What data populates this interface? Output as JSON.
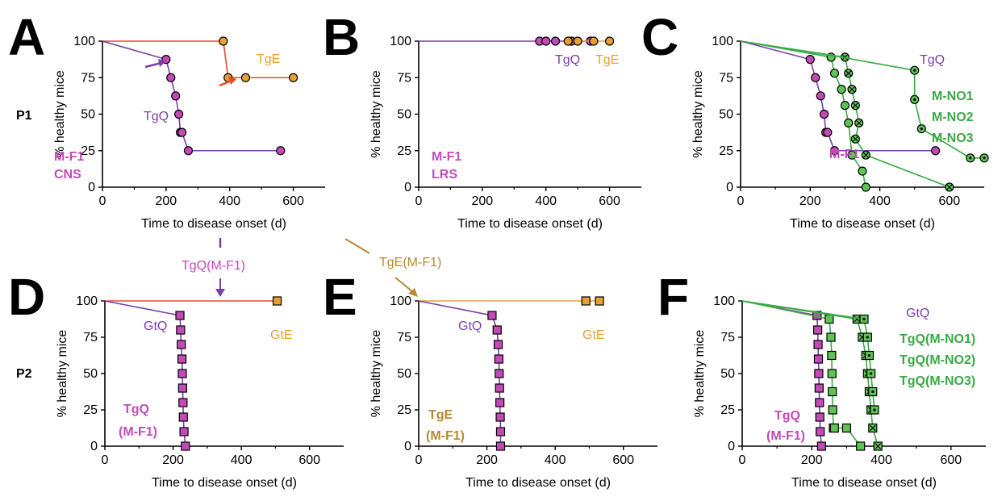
{
  "colors": {
    "purple": "#7a3fa8",
    "magenta": "#c24bb8",
    "orange": "#e8a030",
    "orange_line": "#e8731a",
    "red_line": "#e84a2a",
    "green": "#3aaa45",
    "green_fill": "#5ec454",
    "gold": "#b58a30",
    "black": "#000000"
  },
  "row_labels": [
    "P1",
    "P2"
  ],
  "between_labels": {
    "left": "TgQ(M-F1)",
    "right": "TgE(M-F1)"
  },
  "chart_data": [
    {
      "panel": "A",
      "type": "line",
      "xlabel": "Time to disease onset (d)",
      "ylabel": "% healthy mice",
      "xlim": [
        0,
        700
      ],
      "ylim": [
        0,
        100
      ],
      "xticks": [
        "0",
        "200",
        "400",
        "600"
      ],
      "yticks": [
        "0",
        "25",
        "50",
        "75",
        "100"
      ],
      "labels": [
        {
          "text": "TgE",
          "color": "#e8a030",
          "bold": false
        },
        {
          "text": "TgQ",
          "color": "#7a3fa8",
          "bold": false
        },
        {
          "text": "M-F1",
          "color": "#c24bb8",
          "bold": true
        },
        {
          "text": "CNS",
          "color": "#c24bb8",
          "bold": true
        }
      ],
      "series": [
        {
          "name": "TgE",
          "color": "#e8a030",
          "line_color": "#e84a2a",
          "marker": "circle",
          "x": [
            0,
            380,
            395,
            450,
            600
          ],
          "y": [
            100,
            100,
            75,
            75,
            75
          ],
          "marker_from": 1
        },
        {
          "name": "TgQ",
          "color": "#c24bb8",
          "line_color": "#7a3fa8",
          "marker": "circle",
          "x": [
            0,
            200,
            215,
            230,
            240,
            245,
            250,
            270,
            560
          ],
          "y": [
            100,
            87.5,
            75,
            62.5,
            50,
            37.5,
            37.5,
            25,
            25
          ],
          "marker_from": 1
        }
      ]
    },
    {
      "panel": "B",
      "type": "line",
      "xlabel": "Time to disease onset (d)",
      "ylabel": "% healthy mice",
      "xlim": [
        0,
        700
      ],
      "ylim": [
        0,
        100
      ],
      "xticks": [
        "0",
        "200",
        "400",
        "600"
      ],
      "yticks": [
        "0",
        "25",
        "50",
        "75",
        "100"
      ],
      "labels": [
        {
          "text": "TgQ",
          "color": "#7a3fa8",
          "bold": false
        },
        {
          "text": "TgE",
          "color": "#e8a030",
          "bold": false
        },
        {
          "text": "M-F1",
          "color": "#c24bb8",
          "bold": true
        },
        {
          "text": "LRS",
          "color": "#c24bb8",
          "bold": true
        }
      ],
      "series": [
        {
          "name": "TgQ",
          "color": "#c24bb8",
          "line_color": "#7a3fa8",
          "marker": "circle",
          "x": [
            0,
            380,
            400,
            430,
            480,
            540
          ],
          "y": [
            100,
            100,
            100,
            100,
            100,
            100
          ],
          "marker_from": 1
        },
        {
          "name": "TgE",
          "color": "#e8a030",
          "line_color": "#e8a030",
          "marker": "circle",
          "x": [
            470,
            500,
            550,
            600
          ],
          "y": [
            100,
            100,
            100,
            100
          ],
          "marker_from": 0
        }
      ]
    },
    {
      "panel": "C",
      "type": "line",
      "xlabel": "Time to disease onset (d)",
      "ylabel": "% healthy mice",
      "xlim": [
        0,
        700
      ],
      "ylim": [
        0,
        100
      ],
      "xticks": [
        "0",
        "200",
        "400",
        "600"
      ],
      "yticks": [
        "0",
        "25",
        "50",
        "75",
        "100"
      ],
      "labels": [
        {
          "text": "TgQ",
          "color": "#7a3fa8",
          "bold": false
        },
        {
          "text": "M-NO1",
          "color": "#3aaa45",
          "bold": true
        },
        {
          "text": "M-NO2",
          "color": "#3aaa45",
          "bold": true
        },
        {
          "text": "M-NO3",
          "color": "#3aaa45",
          "bold": true
        },
        {
          "text": "M-F1",
          "color": "#c24bb8",
          "bold": true
        }
      ],
      "series": [
        {
          "name": "M-F1",
          "color": "#c24bb8",
          "line_color": "#7a3fa8",
          "marker": "circle",
          "x": [
            0,
            200,
            215,
            230,
            240,
            245,
            250,
            270,
            560
          ],
          "y": [
            100,
            87.5,
            75,
            62.5,
            50,
            37.5,
            37.5,
            25,
            25
          ],
          "marker_from": 1
        },
        {
          "name": "M-NO1",
          "color": "#5ec454",
          "line_color": "#3aaa45",
          "marker": "circle",
          "x": [
            0,
            260,
            270,
            290,
            300,
            310,
            320,
            350,
            360
          ],
          "y": [
            100,
            89,
            78,
            67,
            56,
            44,
            22,
            11,
            0
          ],
          "marker_from": 1
        },
        {
          "name": "M-NO2",
          "color": "#5ec454",
          "line_color": "#3aaa45",
          "marker": "circle-x",
          "x": [
            0,
            300,
            310,
            320,
            330,
            340,
            330,
            360,
            600
          ],
          "y": [
            100,
            89,
            78,
            67,
            56,
            44,
            33,
            22,
            0
          ],
          "marker_from": 1
        },
        {
          "name": "M-NO3",
          "color": "#5ec454",
          "line_color": "#3aaa45",
          "marker": "circle-dot",
          "x": [
            0,
            290,
            500,
            500,
            520,
            660,
            700
          ],
          "y": [
            100,
            89,
            80,
            60,
            40,
            20,
            20
          ],
          "marker_from": 2
        }
      ]
    },
    {
      "panel": "D",
      "type": "line",
      "xlabel": "Time to disease onset (d)",
      "ylabel": "% healthy mice",
      "xlim": [
        0,
        700
      ],
      "ylim": [
        0,
        100
      ],
      "xticks": [
        "0",
        "200",
        "400",
        "600"
      ],
      "yticks": [
        "0",
        "25",
        "50",
        "75",
        "100"
      ],
      "labels": [
        {
          "text": "GtQ",
          "color": "#7a3fa8",
          "bold": false
        },
        {
          "text": "GtE",
          "color": "#e8a030",
          "bold": false
        },
        {
          "text": "TgQ",
          "color": "#c24bb8",
          "bold": true
        },
        {
          "text": "(M-F1)",
          "color": "#c24bb8",
          "bold": true
        }
      ],
      "series": [
        {
          "name": "GtE",
          "color": "#e8a030",
          "line_color": "#e84a2a",
          "marker": "square",
          "x": [
            0,
            505
          ],
          "y": [
            100,
            100
          ],
          "marker_from": 1
        },
        {
          "name": "GtQ",
          "color": "#c24bb8",
          "line_color": "#7a3fa8",
          "marker": "square",
          "x": [
            0,
            220,
            222,
            224,
            226,
            227,
            228,
            229,
            230,
            232,
            236
          ],
          "y": [
            100,
            90,
            80,
            70,
            60,
            50,
            40,
            30,
            20,
            10,
            0
          ],
          "marker_from": 1
        }
      ]
    },
    {
      "panel": "E",
      "type": "line",
      "xlabel": "Time to disease onset (d)",
      "ylabel": "% healthy mice",
      "xlim": [
        0,
        700
      ],
      "ylim": [
        0,
        100
      ],
      "xticks": [
        "0",
        "200",
        "400",
        "600"
      ],
      "yticks": [
        "0",
        "25",
        "50",
        "75",
        "100"
      ],
      "labels": [
        {
          "text": "GtQ",
          "color": "#7a3fa8",
          "bold": false
        },
        {
          "text": "GtE",
          "color": "#e8a030",
          "bold": false
        },
        {
          "text": "TgE",
          "color": "#b58a30",
          "bold": true
        },
        {
          "text": "(M-F1)",
          "color": "#b58a30",
          "bold": true
        }
      ],
      "series": [
        {
          "name": "GtE",
          "color": "#e8a030",
          "line_color": "#e8a030",
          "marker": "square",
          "x": [
            0,
            490,
            530
          ],
          "y": [
            100,
            100,
            100
          ],
          "marker_from": 1
        },
        {
          "name": "GtQ",
          "color": "#c24bb8",
          "line_color": "#7a3fa8",
          "marker": "square",
          "x": [
            0,
            215,
            230,
            233,
            235,
            236,
            237,
            238,
            239,
            240,
            240
          ],
          "y": [
            100,
            90,
            80,
            70,
            60,
            50,
            40,
            30,
            20,
            10,
            0
          ],
          "marker_from": 1
        }
      ]
    },
    {
      "panel": "F",
      "type": "line",
      "xlabel": "Time to disease onset (d)",
      "ylabel": "% healthy mice",
      "xlim": [
        0,
        700
      ],
      "ylim": [
        0,
        100
      ],
      "xticks": [
        "0",
        "200",
        "400",
        "600"
      ],
      "yticks": [
        "0",
        "25",
        "50",
        "75",
        "100"
      ],
      "labels": [
        {
          "text": "GtQ",
          "color": "#7a3fa8",
          "bold": false
        },
        {
          "text": "TgQ(M-NO1)",
          "color": "#3aaa45",
          "bold": true
        },
        {
          "text": "TgQ(M-NO2)",
          "color": "#3aaa45",
          "bold": true
        },
        {
          "text": "TgQ(M-NO3)",
          "color": "#3aaa45",
          "bold": true
        },
        {
          "text": "TgQ",
          "color": "#c24bb8",
          "bold": true
        },
        {
          "text": "(M-F1)",
          "color": "#c24bb8",
          "bold": true
        }
      ],
      "series": [
        {
          "name": "TgQ(M-F1)",
          "color": "#c24bb8",
          "line_color": "#7a3fa8",
          "marker": "square",
          "x": [
            0,
            215,
            217,
            218,
            219,
            220,
            221,
            222,
            223,
            224,
            228
          ],
          "y": [
            100,
            90,
            80,
            70,
            60,
            50,
            40,
            30,
            20,
            10,
            0
          ],
          "marker_from": 1
        },
        {
          "name": "TgQ(M-NO1)",
          "color": "#5ec454",
          "line_color": "#3aaa45",
          "marker": "square",
          "x": [
            0,
            250,
            255,
            257,
            258,
            259,
            260,
            262,
            265,
            300,
            340
          ],
          "y": [
            100,
            87.5,
            75,
            62.5,
            50,
            37.5,
            25,
            12.5,
            12.5,
            12.5,
            0
          ],
          "marker_from": 1
        },
        {
          "name": "TgQ(M-NO2)",
          "color": "#5ec454",
          "line_color": "#3aaa45",
          "marker": "square-x",
          "x": [
            0,
            330,
            345,
            355,
            360,
            365,
            370,
            375,
            390
          ],
          "y": [
            100,
            87.5,
            75,
            62.5,
            50,
            37.5,
            25,
            12.5,
            0
          ],
          "marker_from": 1
        },
        {
          "name": "TgQ(M-NO3)",
          "color": "#5ec454",
          "line_color": "#3aaa45",
          "marker": "square-dot",
          "x": [
            0,
            350,
            360,
            365,
            370,
            375,
            380
          ],
          "y": [
            100,
            87.5,
            75,
            62.5,
            50,
            37.5,
            25
          ],
          "marker_from": 1
        }
      ]
    }
  ]
}
